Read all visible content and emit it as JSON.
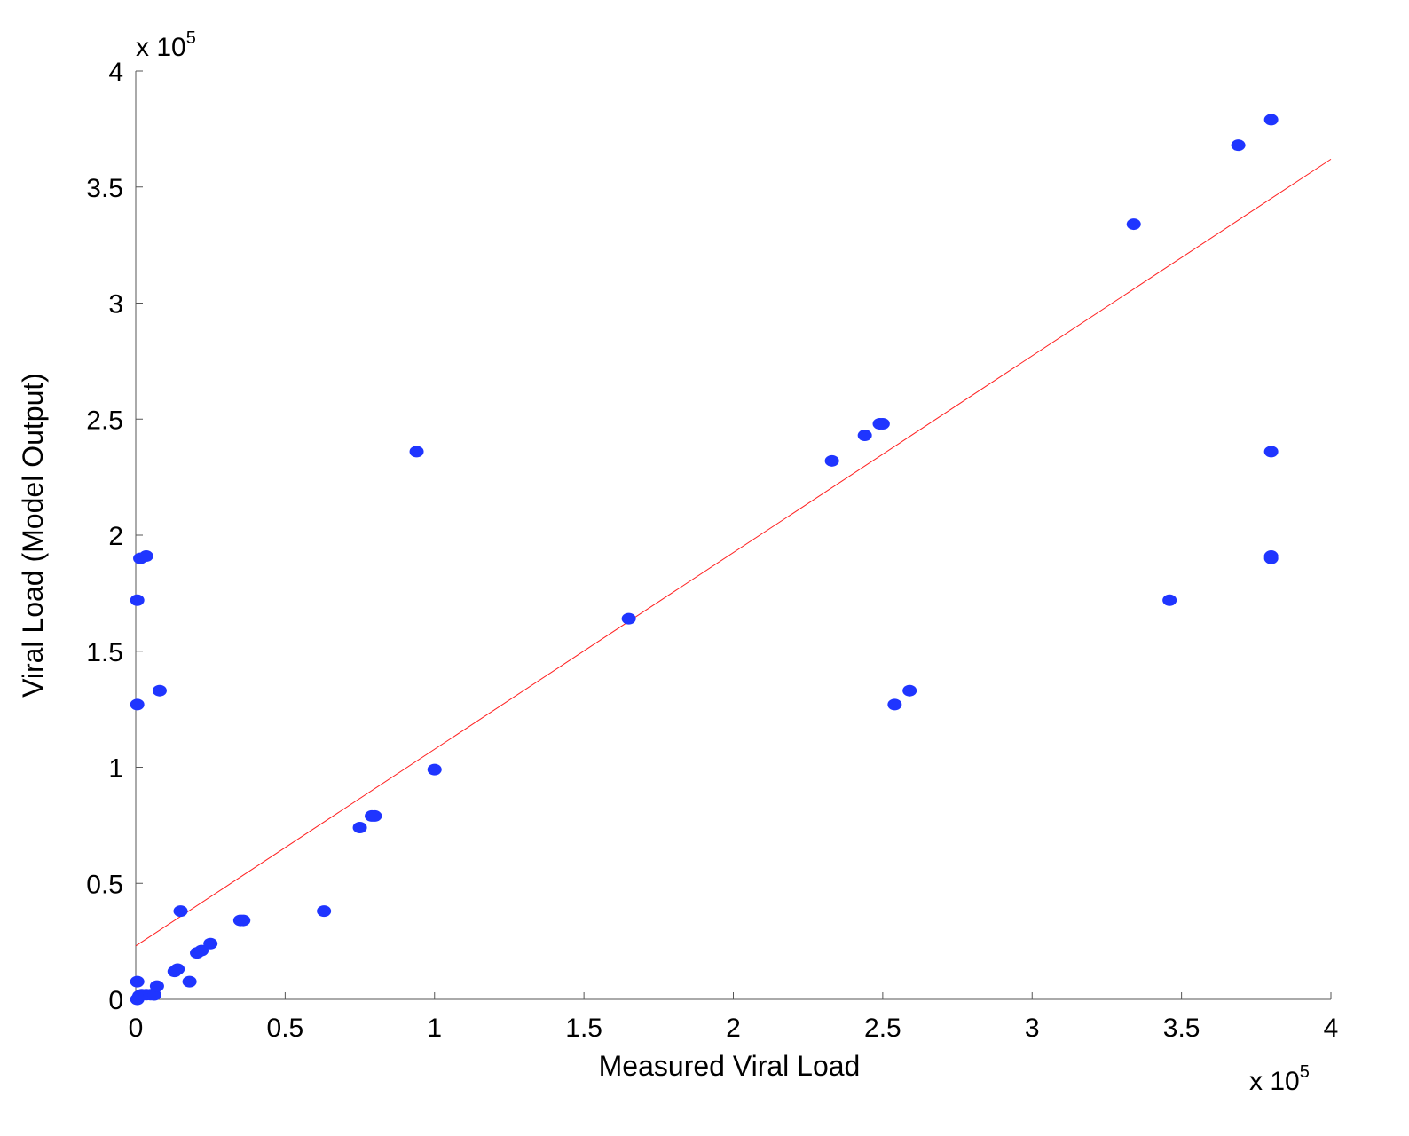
{
  "chart_data": {
    "type": "scatter",
    "title": "",
    "xlabel": "Measured Viral Load",
    "ylabel": "Viral Load (Model Output)",
    "x_multiplier": "x 10",
    "x_multiplier_exp": "5",
    "y_multiplier": "x 10",
    "y_multiplier_exp": "5",
    "xlim": [
      0,
      4
    ],
    "ylim": [
      0,
      4
    ],
    "xticks": [
      "0",
      "0.5",
      "1",
      "1.5",
      "2",
      "2.5",
      "3",
      "3.5",
      "4"
    ],
    "yticks": [
      "0",
      "0.5",
      "1",
      "1.5",
      "2",
      "2.5",
      "3",
      "3.5",
      "4"
    ],
    "grid": false,
    "colors": {
      "points": "#1f35ff",
      "fit_line": "#ff2020"
    },
    "points": [
      [
        0.005,
        0.0
      ],
      [
        0.012,
        0.015
      ],
      [
        0.02,
        0.02
      ],
      [
        0.035,
        0.02
      ],
      [
        0.05,
        0.02
      ],
      [
        0.062,
        0.019
      ],
      [
        0.005,
        0.076
      ],
      [
        0.071,
        0.057
      ],
      [
        0.18,
        0.076
      ],
      [
        0.13,
        0.12
      ],
      [
        0.14,
        0.13
      ],
      [
        0.205,
        0.2
      ],
      [
        0.22,
        0.21
      ],
      [
        0.25,
        0.24
      ],
      [
        0.15,
        0.38
      ],
      [
        0.35,
        0.34
      ],
      [
        0.36,
        0.34
      ],
      [
        0.63,
        0.38
      ],
      [
        0.75,
        0.74
      ],
      [
        0.79,
        0.79
      ],
      [
        0.8,
        0.79
      ],
      [
        1.0,
        0.99
      ],
      [
        0.94,
        2.36
      ],
      [
        1.65,
        1.64
      ],
      [
        2.33,
        2.32
      ],
      [
        2.44,
        2.43
      ],
      [
        2.49,
        2.48
      ],
      [
        2.5,
        2.48
      ],
      [
        2.54,
        1.27
      ],
      [
        2.59,
        1.33
      ],
      [
        3.34,
        3.34
      ],
      [
        3.46,
        1.72
      ],
      [
        3.69,
        3.68
      ],
      [
        3.8,
        3.79
      ],
      [
        3.8,
        2.36
      ],
      [
        3.8,
        1.91
      ],
      [
        3.8,
        1.9
      ],
      [
        0.005,
        1.72
      ],
      [
        0.015,
        1.9
      ],
      [
        0.035,
        1.91
      ],
      [
        0.005,
        1.27
      ],
      [
        0.08,
        1.33
      ]
    ],
    "fit_line": {
      "x": [
        0,
        4
      ],
      "y": [
        0.23,
        3.62
      ]
    }
  }
}
